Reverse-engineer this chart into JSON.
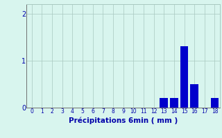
{
  "categories": [
    0,
    1,
    2,
    3,
    4,
    5,
    6,
    7,
    8,
    9,
    10,
    11,
    12,
    13,
    14,
    15,
    16,
    17,
    18
  ],
  "values": [
    0,
    0,
    0,
    0,
    0,
    0,
    0,
    0,
    0,
    0,
    0,
    0,
    0,
    0.2,
    0.2,
    1.3,
    0.5,
    0,
    0.2
  ],
  "bar_color": "#0000cc",
  "bg_color": "#d8f5ee",
  "grid_color": "#a8c8c0",
  "xlabel": "Précipitations 6min ( mm )",
  "xlabel_color": "#0000aa",
  "tick_color": "#0000aa",
  "ylim": [
    0,
    2.2
  ],
  "yticks": [
    0,
    1,
    2
  ],
  "xlim": [
    -0.5,
    18.5
  ]
}
